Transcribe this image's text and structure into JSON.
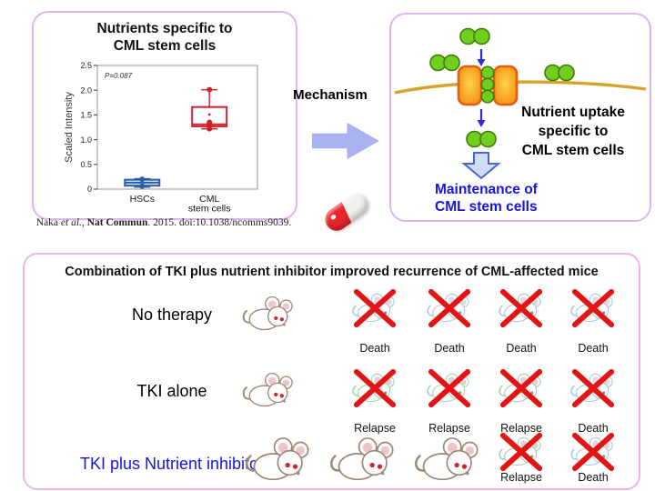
{
  "colors": {
    "panel_border_top": "#dcb4ee",
    "panel_border_bottom": "#eeb6e6",
    "mechanism_arrow": "#a9b1f1",
    "membrane_gold": "#d7a32c",
    "transporter_orange": "#f9a825",
    "transporter_border": "#e65c0e",
    "nutrient_green": "#6fce1f",
    "cross_red": "#e31414",
    "pill_red": "#e8262c",
    "maintenance_blue": "#1414e6",
    "box_hsc_blue": "#2a5caa",
    "box_cml_red": "#cd2028"
  },
  "panel_left": {
    "title_lines": [
      "Nutrients specific to",
      "CML stem cells"
    ]
  },
  "chart_data": {
    "type": "boxplot",
    "title": "Nutrients specific to CML stem cells",
    "ylabel": "Scaled Intensity",
    "ylim": [
      0,
      2.5
    ],
    "ytick_values": [
      0,
      0.5,
      1.0,
      1.5,
      2.0,
      2.5
    ],
    "ytick_labels": [
      "0",
      "0.5",
      "1.0",
      "1.5",
      "2.0",
      "2.5"
    ],
    "annotation": "P=0.087",
    "grid": false,
    "groups": [
      {
        "label_lines": [
          "HSCs"
        ],
        "color": "#2a5caa",
        "fill": "#dce9f7",
        "whisker_low": 0.04,
        "q1": 0.07,
        "median": 0.13,
        "q3": 0.19,
        "whisker_high": 0.21,
        "points": [
          0.2,
          0.06
        ]
      },
      {
        "label_lines": [
          "CML",
          "stem cells"
        ],
        "color": "#cd2028",
        "fill": "#ffffff",
        "whisker_low": 1.22,
        "q1": 1.27,
        "median": 1.31,
        "q3": 1.66,
        "whisker_high": 2.01,
        "points": [
          2.01,
          1.35,
          1.31,
          1.22
        ],
        "mean": 1.51
      }
    ]
  },
  "citation": {
    "author": "Naka ",
    "etal": "et al.",
    "sep": ", ",
    "journal": "Nat Commun",
    "rest": ". 2015. doi:10.1038/ncomms9039."
  },
  "mechanism": {
    "label": "Mechanism"
  },
  "panel_right": {
    "uptake_lines": [
      "Nutrient uptake",
      "specific to",
      "CML stem cells"
    ],
    "maintenance_lines": [
      "Maintenance of",
      "CML stem cells"
    ]
  },
  "bottom": {
    "title": "Combination of TKI plus nutrient inhibitor improved recurrence of CML-affected mice",
    "rows": [
      {
        "label": "No therapy",
        "label_color": "#000000",
        "healthy_mice": 1,
        "outcomes": [
          {
            "label": "Death",
            "tint": "blue"
          },
          {
            "label": "Death",
            "tint": "blue"
          },
          {
            "label": "Death",
            "tint": "blue"
          },
          {
            "label": "Death",
            "tint": "blue"
          }
        ]
      },
      {
        "label": "TKI alone",
        "label_color": "#000000",
        "healthy_mice": 1,
        "outcomes": [
          {
            "label": "Relapse",
            "tint": "green"
          },
          {
            "label": "Relapse",
            "tint": "green"
          },
          {
            "label": "Relapse",
            "tint": "green"
          },
          {
            "label": "Death",
            "tint": "blue"
          }
        ]
      },
      {
        "label": "TKI plus Nutrient inhibitor",
        "label_color": "#1414e6",
        "healthy_mice": 3,
        "outcomes": [
          {
            "label": "Relapse",
            "tint": "green"
          },
          {
            "label": "Death",
            "tint": "blue"
          }
        ]
      }
    ]
  }
}
